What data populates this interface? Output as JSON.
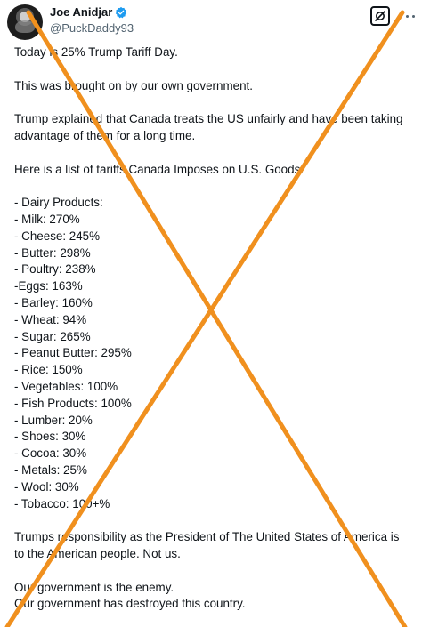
{
  "author": {
    "display_name": "Joe Anidjar",
    "handle": "@PuckDaddy93",
    "verified_icon": "verified-badge-icon",
    "badge_color": "#1d9bf0"
  },
  "header": {
    "grok_icon": "grok-icon",
    "more_icon": "more-options-icon"
  },
  "post": {
    "intro": [
      "Today is 25% Trump Tariff Day.",
      "This was brought on by our own government.",
      "Trump explained that Canada treats the US unfairly and have been taking advantage of them for a long time.",
      "Here is a list of tariffs Canada Imposes on U.S. Goods:"
    ],
    "tariffs": [
      "- Dairy Products:",
      "- Milk: 270%",
      "- Cheese: 245%",
      "- Butter: 298%",
      "- Poultry: 238%",
      "-Eggs: 163%",
      "- Barley: 160%",
      "- Wheat: 94%",
      "- Sugar: 265%",
      "- Peanut Butter: 295%",
      "- Rice: 150%",
      "- Vegetables: 100%",
      "- Fish Products: 100%",
      "- Lumber: 20%",
      "- Shoes: 30%",
      "- Cocoa: 30%",
      "- Metals: 25%",
      "- Wool: 30%",
      "- Tobacco: 100+%"
    ],
    "closing": [
      "Trumps responsibility as the President of The United States of America is to the American people. Not us.",
      "Our government is the enemy.",
      "Our government has destroyed this country."
    ]
  },
  "overlay": {
    "mark": "cross-out-x",
    "color": "#f0901e"
  }
}
